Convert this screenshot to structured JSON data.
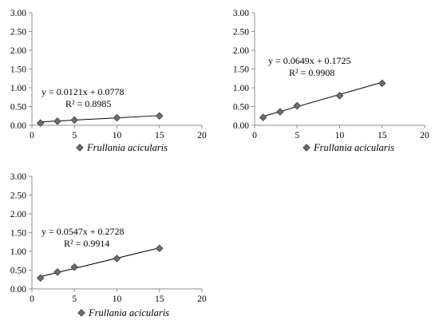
{
  "chart_data": [
    {
      "type": "scatter",
      "series": [
        {
          "name": "Frullania acicularis",
          "x": [
            1,
            3,
            5,
            10,
            15
          ],
          "y": [
            0.06,
            0.11,
            0.14,
            0.2,
            0.25
          ],
          "trendline": {
            "slope": 0.0121,
            "intercept": 0.0778
          }
        }
      ],
      "equation": "y = 0.0121x + 0.0778",
      "r2": "R² = 0.8985",
      "xlim": [
        0,
        20
      ],
      "ylim": [
        0,
        3
      ],
      "xticks": [
        "0",
        "5",
        "10",
        "15",
        "20"
      ],
      "yticks": [
        "0.00",
        "0.50",
        "1.00",
        "1.50",
        "2.00",
        "2.50",
        "3.00"
      ],
      "legend_position": "bottom",
      "marker_color": "#6e6e6e",
      "line_color": "#000000"
    },
    {
      "type": "scatter",
      "series": [
        {
          "name": "Frullania acicularis",
          "x": [
            1,
            3,
            5,
            10,
            15
          ],
          "y": [
            0.21,
            0.36,
            0.52,
            0.79,
            1.12
          ],
          "trendline": {
            "slope": 0.0649,
            "intercept": 0.1725
          }
        }
      ],
      "equation": "y = 0.0649x + 0.1725",
      "r2": "R² = 0.9908",
      "xlim": [
        0,
        20
      ],
      "ylim": [
        0,
        3
      ],
      "xticks": [
        "0",
        "5",
        "10",
        "15",
        "20"
      ],
      "yticks": [
        "0.00",
        "0.50",
        "1.00",
        "1.50",
        "2.00",
        "2.50",
        "3.00"
      ],
      "legend_position": "bottom",
      "marker_color": "#6e6e6e",
      "line_color": "#000000"
    },
    {
      "type": "scatter",
      "series": [
        {
          "name": "Frullania acicularis",
          "x": [
            1,
            3,
            5,
            10,
            15
          ],
          "y": [
            0.29,
            0.45,
            0.58,
            0.81,
            1.08
          ],
          "trendline": {
            "slope": 0.0547,
            "intercept": 0.2728
          }
        }
      ],
      "equation": "y = 0.0547x + 0.2728",
      "r2": "R² = 0.9914",
      "xlim": [
        0,
        20
      ],
      "ylim": [
        0,
        3
      ],
      "xticks": [
        "0",
        "5",
        "10",
        "15",
        "20"
      ],
      "yticks": [
        "0.00",
        "0.50",
        "1.00",
        "1.50",
        "2.00",
        "2.50",
        "3.00"
      ],
      "legend_position": "bottom",
      "marker_color": "#6e6e6e",
      "line_color": "#000000"
    }
  ]
}
